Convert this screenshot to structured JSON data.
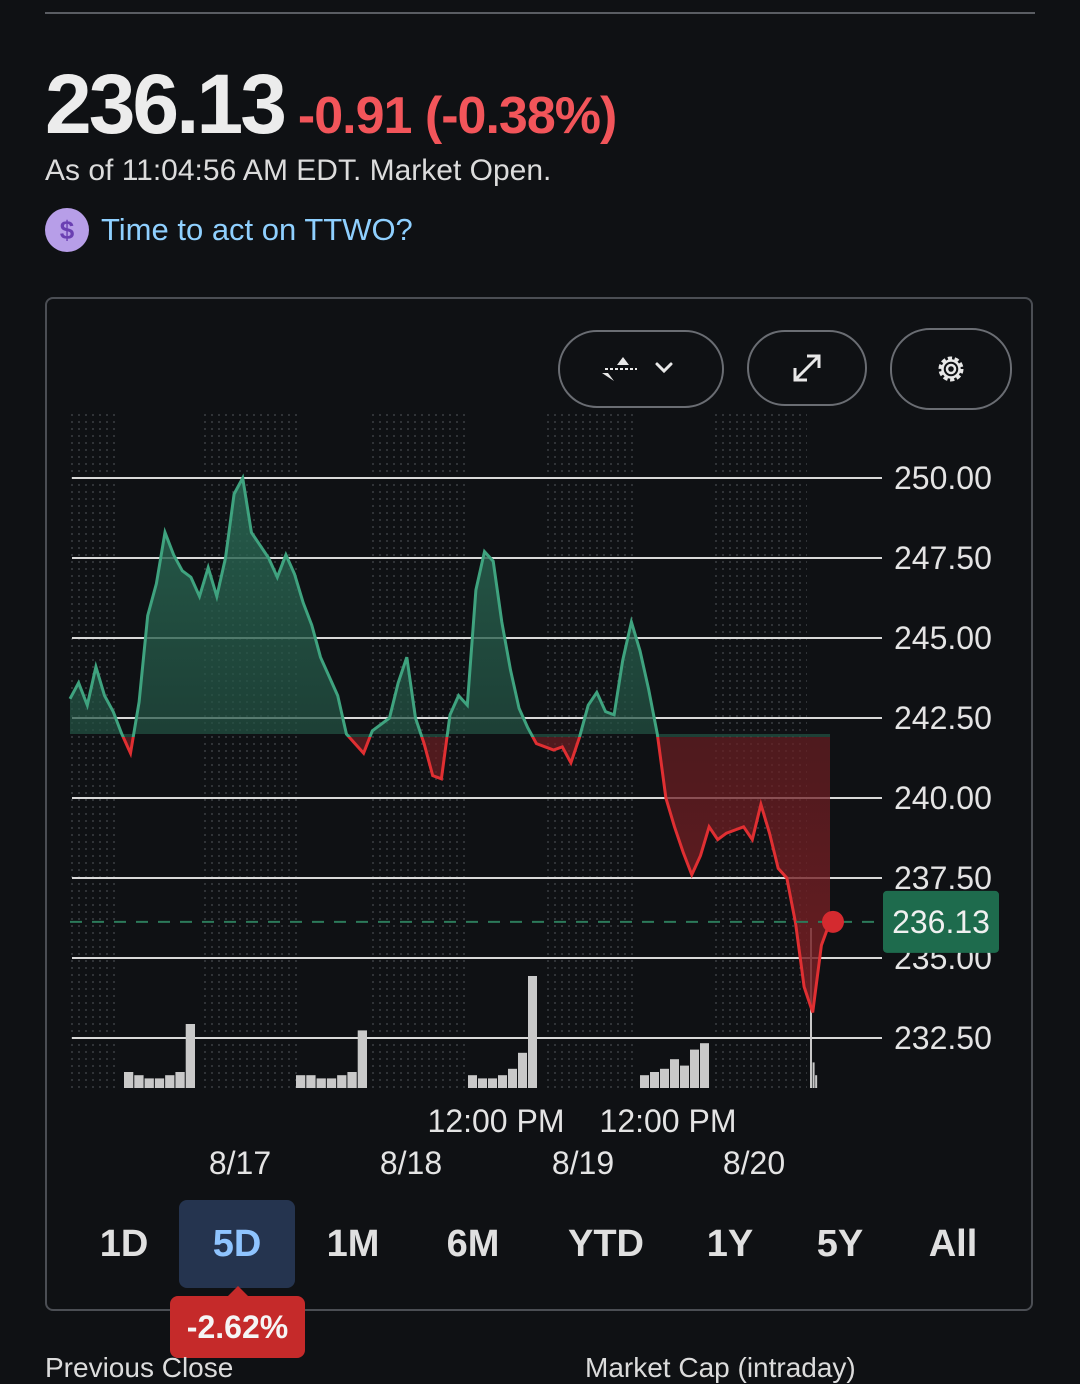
{
  "quote": {
    "price": "236.13",
    "change": "-0.91 (-0.38%)",
    "as_of": "As of 11:04:56 AM EDT. Market Open.",
    "cta_label": "Time to act on TTWO?"
  },
  "icons": {
    "cta": "dollar-icon",
    "chart_type": "chart-type-icon",
    "dropdown": "chevron-down-icon",
    "expand": "expand-icon",
    "settings": "gear-icon"
  },
  "colors": {
    "up": "#3fa37f",
    "down": "#e02f32",
    "price_tag": "#1e6b4d",
    "active_tab": "#25344f"
  },
  "chart_data": {
    "type": "area",
    "y_ticks": [
      "250.00",
      "247.50",
      "245.00",
      "242.50",
      "240.00",
      "237.50",
      "235.00",
      "232.50"
    ],
    "ylim": [
      231.5,
      251
    ],
    "baseline": 242.0,
    "current_price_label": "236.13",
    "current_price": 236.13,
    "time_labels": [
      "12:00 PM",
      "12:00 PM"
    ],
    "date_labels": [
      "8/17",
      "8/18",
      "8/19",
      "8/20"
    ],
    "series": [
      {
        "values": [
          243.1,
          243.6,
          242.9,
          244.1,
          243.2,
          242.7,
          242.0,
          241.4,
          243.0,
          245.7,
          246.7,
          248.3,
          247.6,
          247.1,
          246.9,
          246.3,
          247.2,
          246.3,
          247.5,
          249.5,
          250.0,
          248.3,
          247.9,
          247.5,
          246.9,
          247.6,
          247.0,
          246.1,
          245.4,
          244.4,
          243.8,
          243.2,
          242.0,
          241.7,
          241.4,
          242.1,
          242.3,
          242.5,
          243.6,
          244.4,
          242.5,
          241.7,
          240.7,
          240.6,
          242.6,
          243.2,
          242.9,
          246.5,
          247.7,
          247.4,
          245.5,
          244.0,
          242.8,
          242.2,
          241.7,
          241.6,
          241.5,
          241.6,
          241.1,
          241.9,
          242.9,
          243.3,
          242.7,
          242.6,
          244.3,
          245.5,
          244.6,
          243.4,
          242.0,
          240.0,
          239.1,
          238.3,
          237.6,
          238.2,
          239.1,
          238.7,
          238.9,
          239.0,
          239.1,
          238.7,
          239.8,
          238.9,
          237.8,
          237.5,
          236.1,
          234.1,
          233.3,
          235.4,
          236.13
        ]
      }
    ],
    "volume": [
      5,
      4,
      3,
      3,
      4,
      5,
      20,
      4,
      4,
      3,
      3,
      4,
      5,
      18,
      4,
      3,
      3,
      4,
      6,
      11,
      35,
      4,
      5,
      6,
      9,
      7,
      12,
      14,
      50,
      8,
      4
    ]
  },
  "controls": {
    "ranges": [
      "1D",
      "5D",
      "1M",
      "6M",
      "YTD",
      "1Y",
      "5Y",
      "All"
    ],
    "active_range": "5D",
    "range_change": "-2.62%"
  },
  "footer": {
    "left_label": "Previous Close",
    "right_label": "Market Cap (intraday)"
  }
}
